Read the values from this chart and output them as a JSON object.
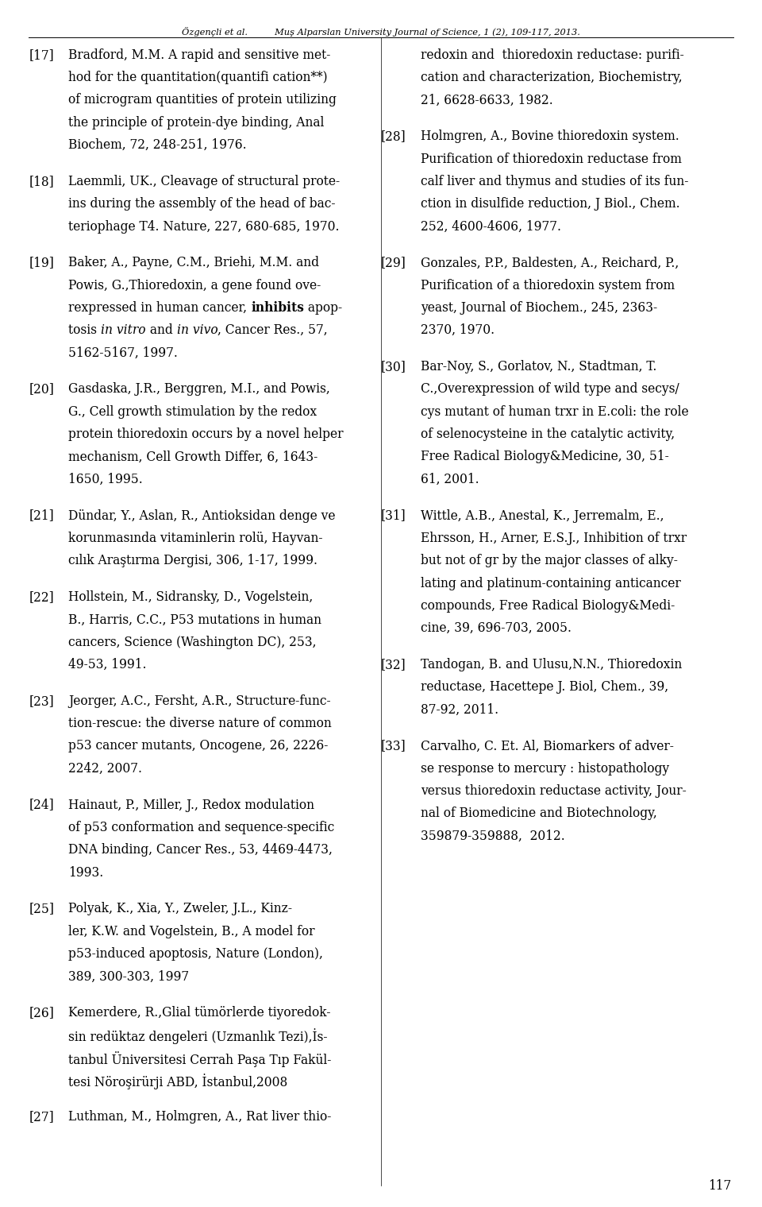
{
  "background_color": "#ffffff",
  "text_color": "#000000",
  "header_center": "Özgençli et al.",
  "header_right": "Muş Alparslan University Journal of Science, 1 (2), 109-117, 2013.",
  "page_number": "117",
  "figsize": [
    9.6,
    15.19
  ],
  "dpi": 100,
  "left_col": [
    {
      "num": "[17]",
      "lines": [
        "Bradford, M.M. A rapid and sensitive met-",
        "hod for the quantitation(quantifi cation**)",
        "of microgram quantities of protein utilizing",
        "the principle of protein-dye binding, Anal",
        "Biochem, 72, 248-251, 1976."
      ]
    },
    {
      "num": "[18]",
      "lines": [
        "Laemmli, UK., Cleavage of structural prote-",
        "ins during the assembly of the head of bac-",
        "teriophage T4. Nature, 227, 680-685, 1970."
      ]
    },
    {
      "num": "[19]",
      "lines": [
        "Baker, A., Payne, C.M., Briehi, M.M. and",
        "Powis, G.,Thioredoxin, a gene found ove-",
        "rexpressed in human cancer, __BOLD__inhibits__ apop-",
        "tosis __ITALIC__in vitro__ and __ITALIC__in vivo____, Cancer Res., 57,",
        "5162-5167, 1997."
      ],
      "mixed": true
    },
    {
      "num": "[20]",
      "lines": [
        "Gasdaska, J.R., Berggren, M.I., and Powis,",
        "G., Cell growth stimulation by the redox",
        "protein thioredoxin occurs by a novel helper",
        "mechanism, Cell Growth Differ, 6, 1643-",
        "1650, 1995."
      ]
    },
    {
      "num": "[21]",
      "lines": [
        "Dündar, Y., Aslan, R., Antioksidan denge ve",
        "korunmasında vitaminlerin rolü, Hayvan-",
        "cılık Araştırma Dergisi, 306, 1-17, 1999."
      ]
    },
    {
      "num": "[22]",
      "lines": [
        "Hollstein, M., Sidransky, D., Vogelstein,",
        "B., Harris, C.C., P53 mutations in human",
        "cancers, Science (Washington DC), 253,",
        "49-53, 1991."
      ]
    },
    {
      "num": "[23]",
      "lines": [
        "Jeorger, A.C., Fersht, A.R., Structure-func-",
        "tion-rescue: the diverse nature of common",
        "p53 cancer mutants, Oncogene, 26, 2226-",
        "2242, 2007."
      ]
    },
    {
      "num": "[24]",
      "lines": [
        "Hainaut, P., Miller, J., Redox modulation",
        "of p53 conformation and sequence-specific",
        "DNA binding, Cancer Res., 53, 4469-4473,",
        "1993."
      ]
    },
    {
      "num": "[25]",
      "lines": [
        "Polyak, K., Xia, Y., Zweler, J.L., Kinz-",
        "ler, K.W. and Vogelstein, B., A model for",
        "p53-induced apoptosis, Nature (London),",
        "389, 300-303, 1997"
      ]
    },
    {
      "num": "[26]",
      "lines": [
        "Kemerdere, R.,Glial tümörlerde tiyoredok-",
        "sin redüktaz dengeleri (Uzmanlık Tezi),İs-",
        "tanbul Üniversitesi Cerrah Paşa Tıp Fakül-",
        "tesi Nöroşirürji ABD, İstanbul,2008"
      ]
    },
    {
      "num": "[27]",
      "lines": [
        "Luthman, M., Holmgren, A., Rat liver thio-"
      ]
    }
  ],
  "right_col": [
    {
      "num": "",
      "lines": [
        "redoxin and  thioredoxin reductase: purifi-",
        "cation and characterization, Biochemistry,",
        "21, 6628-6633, 1982."
      ]
    },
    {
      "num": "[28]",
      "lines": [
        "Holmgren, A., Bovine thioredoxin system.",
        "Purification of thioredoxin reductase from",
        "calf liver and thymus and studies of its fun-",
        "ction in disulfide reduction, J Biol., Chem.",
        "252, 4600-4606, 1977."
      ]
    },
    {
      "num": "[29]",
      "lines": [
        "Gonzales, P.P., Baldesten, A., Reichard, P.,",
        "Purification of a thioredoxin system from",
        "yeast, Journal of Biochem., 245, 2363-",
        "2370, 1970."
      ]
    },
    {
      "num": "[30]",
      "lines": [
        "Bar-Noy, S., Gorlatov, N., Stadtman, T.",
        "C.,Overexpression of wild type and secys/",
        "cys mutant of human trxr in E.coli: the role",
        "of selenocysteine in the catalytic activity,",
        "Free Radical Biology&Medicine, 30, 51-",
        "61, 2001."
      ]
    },
    {
      "num": "[31]",
      "lines": [
        "Wittle, A.B., Anestal, K., Jerremalm, E.,",
        "Ehrsson, H., Arner, E.S.J., Inhibition of trxr",
        "but not of gr by the major classes of alky-",
        "lating and platinum-containing anticancer",
        "compounds, Free Radical Biology&Medi-",
        "cine, 39, 696-703, 2005."
      ]
    },
    {
      "num": "[32]",
      "lines": [
        "Tandogan, B. and Ulusu,N.N., Thioredoxin",
        "reductase, Hacettepe J. Biol, Chem., 39,",
        "87-92, 2011."
      ]
    },
    {
      "num": "[33]",
      "lines": [
        "Carvalho, C. Et. Al, Biomarkers of adver-",
        "se response to mercury : histopathology",
        "versus thioredoxin reductase activity, Jour-",
        "nal of Biomedicine and Biotechnology,",
        "359879-359888,  2012."
      ]
    }
  ],
  "ref19_lines": [
    {
      "text": "Baker, A., Payne, C.M., Briehi, M.M. and",
      "parts": [
        {
          "t": "Baker, A., Payne, C.M., Briehi, M.M. and",
          "s": "normal"
        }
      ]
    },
    {
      "text": "Powis, G.,Thioredoxin, a gene found ove-",
      "parts": [
        {
          "t": "Powis, G.,Thioredoxin, a gene found ove-",
          "s": "normal"
        }
      ]
    },
    {
      "text": "rexpressed in human cancer, inhibits apop-",
      "parts": [
        {
          "t": "rexpressed in human cancer, ",
          "s": "normal"
        },
        {
          "t": "inhibits",
          "s": "bold"
        },
        {
          "t": " apop-",
          "s": "normal"
        }
      ]
    },
    {
      "text": "tosis in vitro and in vivo, Cancer Res., 57,",
      "parts": [
        {
          "t": "tosis ",
          "s": "normal"
        },
        {
          "t": "in vitro",
          "s": "italic"
        },
        {
          "t": " and ",
          "s": "normal"
        },
        {
          "t": "in vivo",
          "s": "italic"
        },
        {
          "t": ", Cancer Res., 57,",
          "s": "normal"
        }
      ]
    },
    {
      "text": "5162-5167, 1997.",
      "parts": [
        {
          "t": "5162-5167, 1997.",
          "s": "normal"
        }
      ]
    }
  ]
}
